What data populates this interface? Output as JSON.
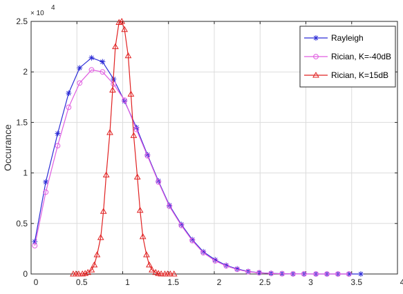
{
  "chart_data": {
    "type": "line",
    "title": "",
    "xlabel": "",
    "ylabel": "Occurance",
    "y_exponent_label": {
      "base": "× 10",
      "power": "4"
    },
    "xlim": [
      0,
      4
    ],
    "ylim": [
      0,
      2.5
    ],
    "x_ticks": [
      0,
      0.5,
      1,
      1.5,
      2,
      2.5,
      3,
      3.5,
      4
    ],
    "x_tick_labels": [
      "0",
      "0.5",
      "1",
      "1.5",
      "2",
      "2.5",
      "3",
      "3.5",
      "4"
    ],
    "y_ticks": [
      0,
      0.5,
      1,
      1.5,
      2,
      2.5
    ],
    "y_tick_labels": [
      "0",
      "0.5",
      "1",
      "1.5",
      "2",
      "2.5"
    ],
    "grid": true,
    "legend_placement": "top-right",
    "series": [
      {
        "name": "Rayleigh",
        "color": "#2b2bd6",
        "marker": "asterisk",
        "x": [
          0.04,
          0.16,
          0.29,
          0.41,
          0.53,
          0.66,
          0.78,
          0.9,
          1.02,
          1.15,
          1.27,
          1.39,
          1.51,
          1.64,
          1.76,
          1.88,
          2.01,
          2.13,
          2.25,
          2.37,
          2.49,
          2.62,
          2.74,
          2.86,
          2.98,
          3.11,
          3.23,
          3.35,
          3.47,
          3.6
        ],
        "y": [
          0.32,
          0.91,
          1.39,
          1.79,
          2.04,
          2.14,
          2.1,
          1.93,
          1.71,
          1.45,
          1.18,
          0.92,
          0.68,
          0.49,
          0.34,
          0.22,
          0.14,
          0.085,
          0.05,
          0.025,
          0.013,
          0.006,
          0.003,
          0.001,
          0.0005,
          0.0002,
          0.0001,
          0,
          0,
          0
        ]
      },
      {
        "name": "Rician, K=-40dB",
        "color": "#e05ce0",
        "marker": "circle",
        "x": [
          0.04,
          0.16,
          0.29,
          0.41,
          0.53,
          0.66,
          0.78,
          0.9,
          1.02,
          1.15,
          1.27,
          1.39,
          1.51,
          1.64,
          1.76,
          1.88,
          2.01,
          2.13,
          2.25,
          2.37,
          2.49,
          2.62,
          2.74,
          2.86,
          2.98,
          3.11,
          3.23,
          3.35,
          3.47
        ],
        "y": [
          0.28,
          0.81,
          1.27,
          1.65,
          1.89,
          2.02,
          2.0,
          1.88,
          1.72,
          1.43,
          1.17,
          0.91,
          0.67,
          0.48,
          0.33,
          0.21,
          0.13,
          0.08,
          0.045,
          0.022,
          0.012,
          0.005,
          0.002,
          0.001,
          0.0004,
          0.0001,
          0,
          0,
          0
        ]
      },
      {
        "name": "Rician, K=15dB",
        "color": "#e02020",
        "marker": "triangle",
        "x": [
          0.46,
          0.49,
          0.52,
          0.56,
          0.59,
          0.62,
          0.66,
          0.69,
          0.72,
          0.76,
          0.79,
          0.82,
          0.86,
          0.89,
          0.92,
          0.96,
          0.99,
          1.02,
          1.06,
          1.09,
          1.12,
          1.16,
          1.19,
          1.22,
          1.26,
          1.29,
          1.32,
          1.36,
          1.39,
          1.42,
          1.46,
          1.49,
          1.52,
          1.56
        ],
        "y": [
          0,
          0,
          0,
          0.001,
          0.005,
          0.015,
          0.04,
          0.09,
          0.19,
          0.36,
          0.62,
          0.98,
          1.4,
          1.82,
          2.25,
          2.49,
          2.5,
          2.42,
          2.16,
          1.78,
          1.37,
          0.96,
          0.63,
          0.37,
          0.19,
          0.09,
          0.04,
          0.015,
          0.005,
          0.001,
          0,
          0,
          0,
          0
        ]
      }
    ]
  }
}
